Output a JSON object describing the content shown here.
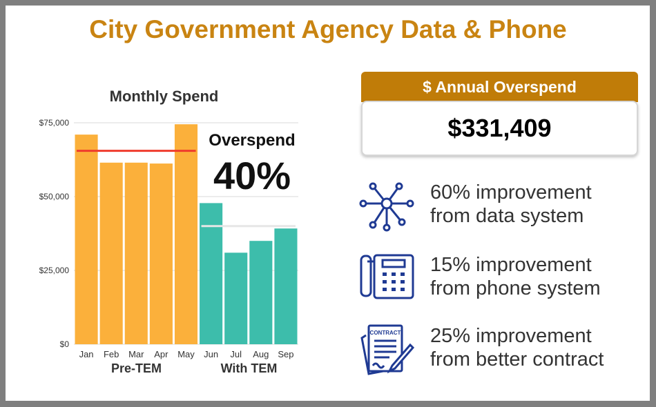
{
  "title": "City Government Agency Data & Phone",
  "chart_data": {
    "type": "bar",
    "title": "Monthly Spend",
    "categories": [
      "Jan",
      "Feb",
      "Mar",
      "Apr",
      "May",
      "Jun",
      "Jul",
      "Aug",
      "Sep"
    ],
    "values": [
      71000,
      61500,
      61500,
      61200,
      74500,
      47800,
      31000,
      35000,
      39200
    ],
    "series_colors": [
      "#fbb03b",
      "#fbb03b",
      "#fbb03b",
      "#fbb03b",
      "#fbb03b",
      "#3dbdab",
      "#3dbdab",
      "#3dbdab",
      "#3dbdab"
    ],
    "groups": [
      {
        "label": "Pre-TEM",
        "categories": [
          "Jan",
          "Feb",
          "Mar",
          "Apr",
          "May"
        ]
      },
      {
        "label": "With TEM",
        "categories": [
          "Jun",
          "Jul",
          "Aug",
          "Sep"
        ]
      }
    ],
    "reference_lines": [
      {
        "value": 65500,
        "color": "#ef3b2c",
        "span": [
          "Jan",
          "May"
        ]
      },
      {
        "value": 40000,
        "color": "#e6e6e6",
        "span": [
          "Jun",
          "Sep"
        ]
      }
    ],
    "yticks": [
      "$0",
      "$25,000",
      "$50,000",
      "$75,000"
    ],
    "ytick_values": [
      0,
      25000,
      50000,
      75000
    ],
    "ylim": [
      0,
      75000
    ],
    "grid": true,
    "annotation": {
      "label": "Overspend",
      "value": "40%"
    }
  },
  "summary": {
    "label": "$ Annual Overspend",
    "value": "$331,409"
  },
  "improvements": [
    {
      "icon": "network-icon",
      "line1": "60% improvement",
      "line2": "from data system"
    },
    {
      "icon": "phone-icon",
      "line1": "15% improvement",
      "line2": "from phone system"
    },
    {
      "icon": "contract-icon",
      "line1": "25% improvement",
      "line2": "from better contract",
      "icon_text": "CONTRACT"
    }
  ],
  "colors": {
    "accent": "#c98412",
    "banner": "#c07c08",
    "pre": "#fbb03b",
    "tem": "#3dbdab",
    "icon": "#1f3a93"
  }
}
